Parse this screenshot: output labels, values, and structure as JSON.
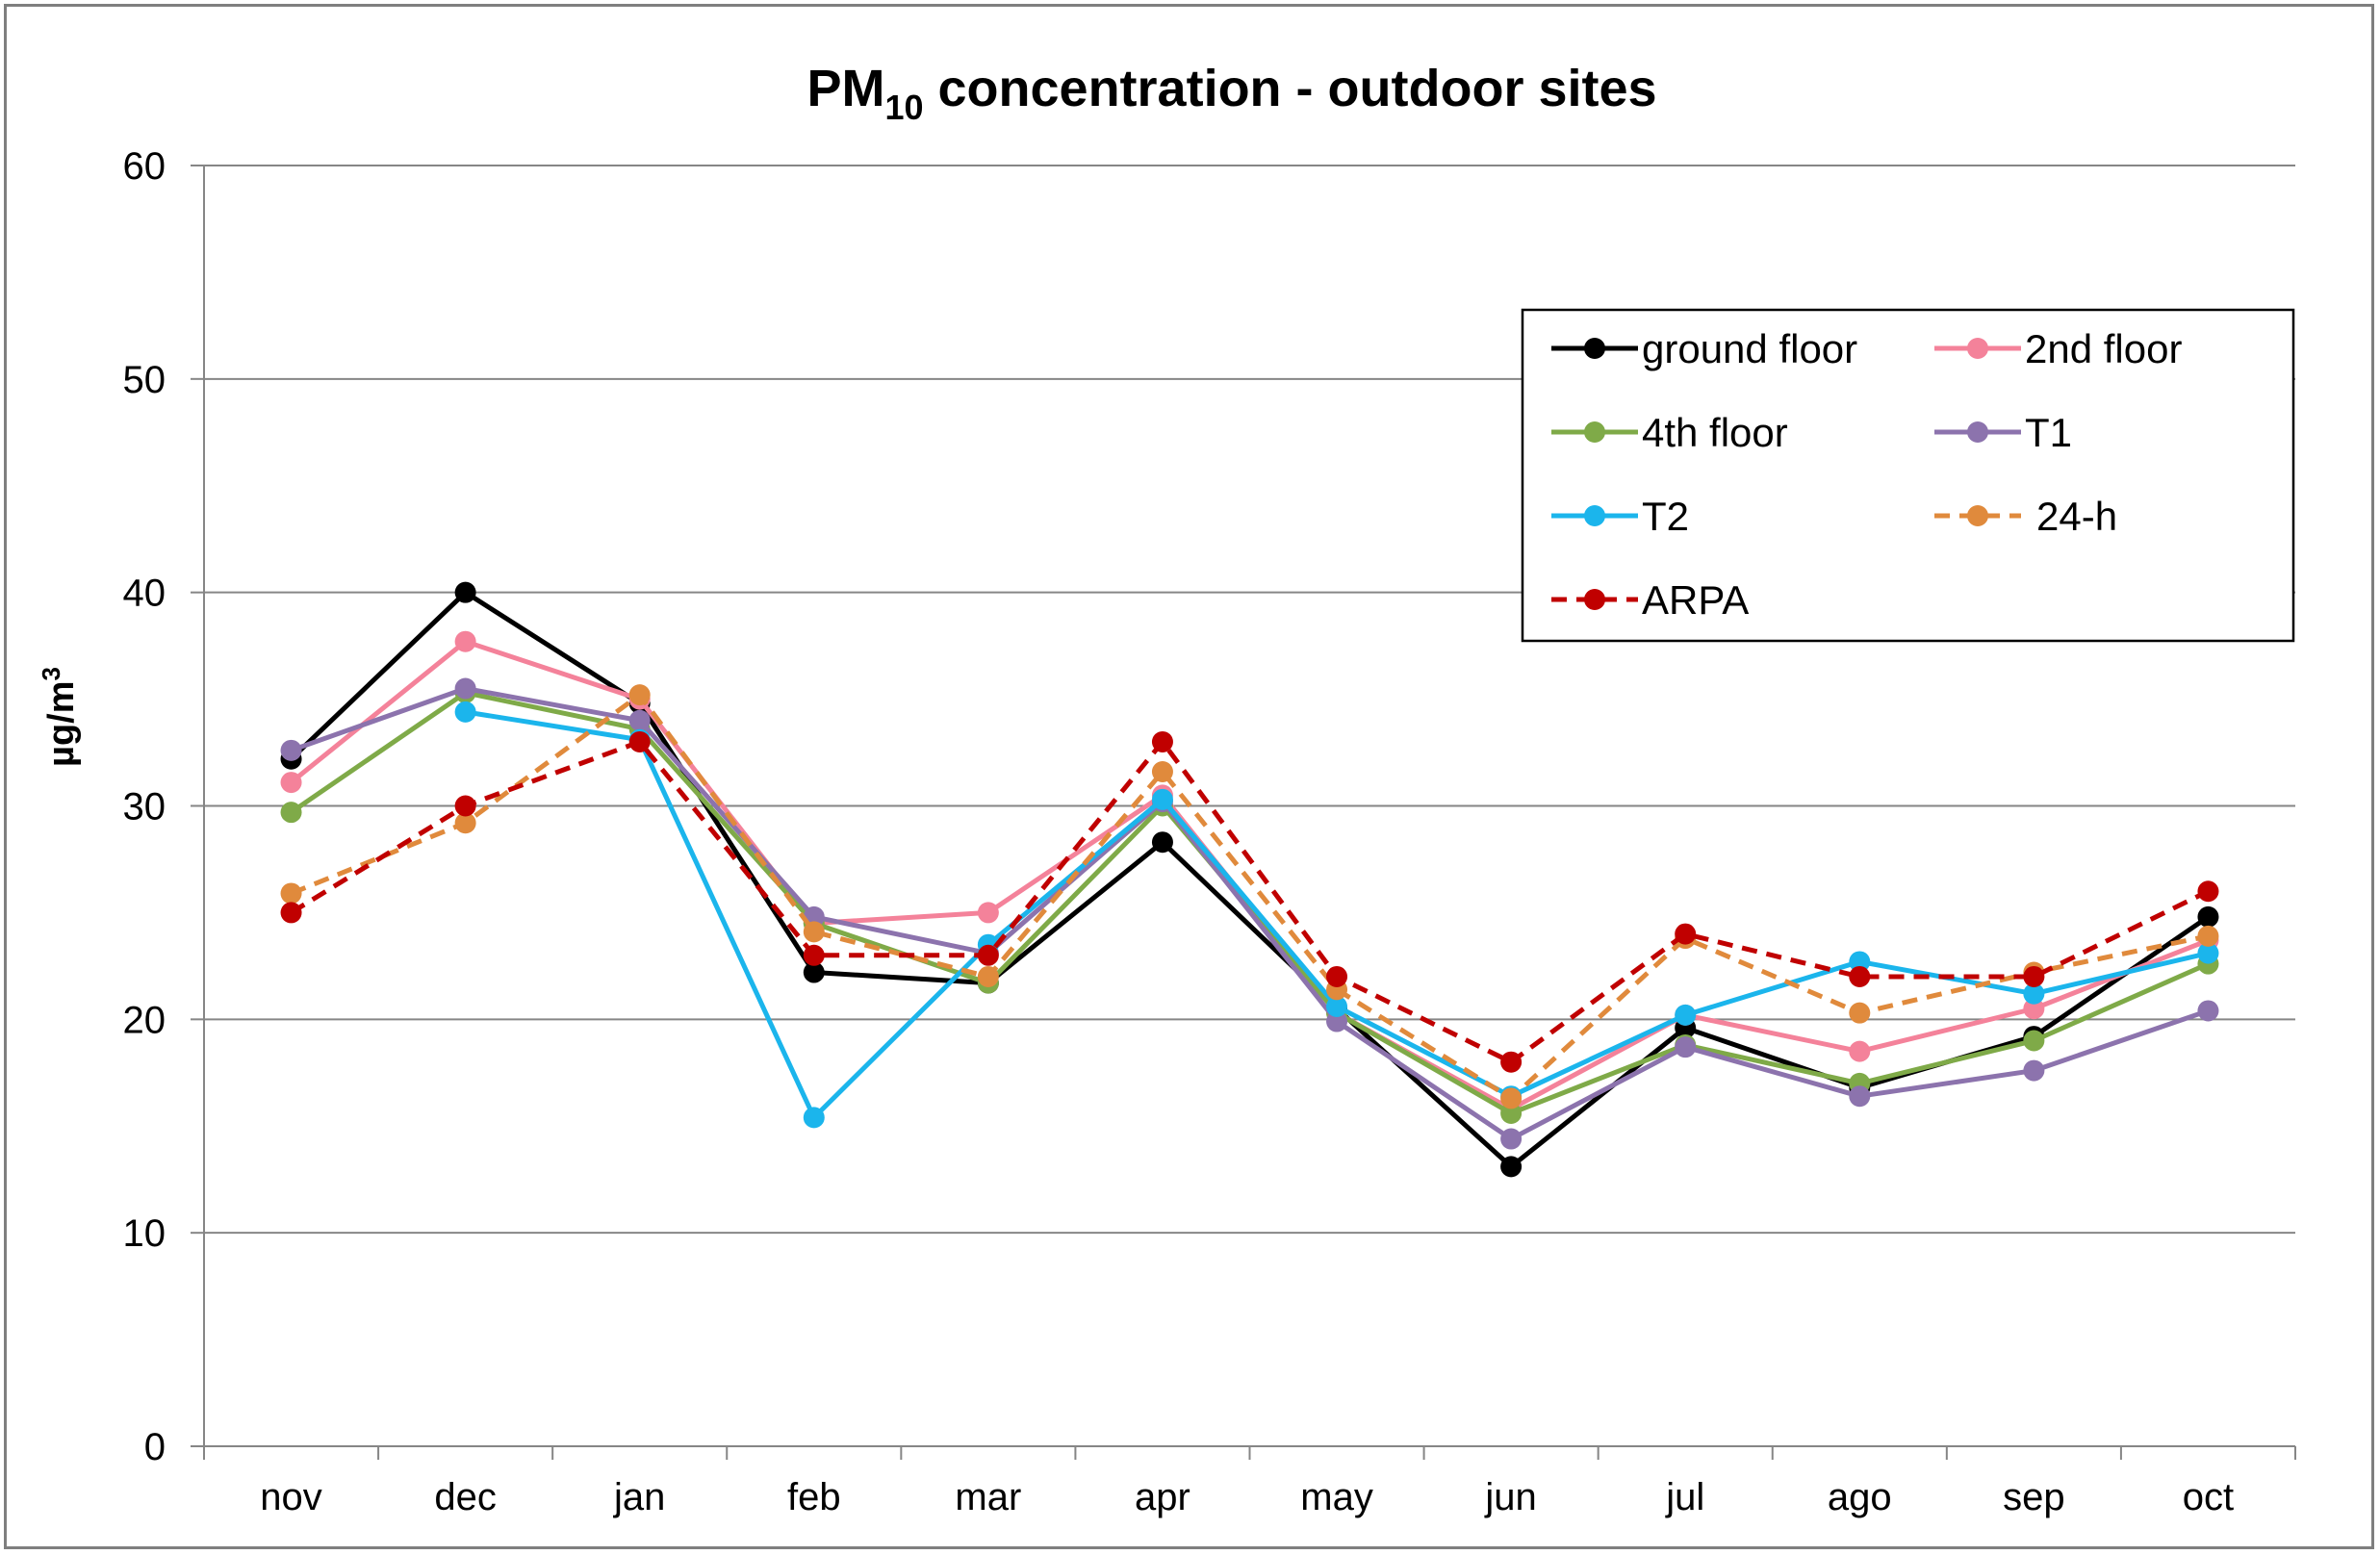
{
  "chart_data": {
    "type": "line",
    "title": {
      "prefix": "PM",
      "subscript": "10",
      "suffix": " concentration - outdoor sites"
    },
    "ylabel": {
      "prefix": "µg/m",
      "superscript": "3"
    },
    "xlabel": "",
    "ylim": [
      0,
      60
    ],
    "yticks": [
      "0",
      "10",
      "20",
      "30",
      "40",
      "50",
      "60"
    ],
    "ytick_values": [
      0,
      10,
      20,
      30,
      40,
      50,
      60
    ],
    "grid": true,
    "legend_position": "top-right",
    "categories": [
      "nov",
      "dec",
      "jan",
      "feb",
      "mar",
      "apr",
      "may",
      "jun",
      "jul",
      "ago",
      "sep",
      "oct"
    ],
    "series": [
      {
        "name": "ground floor",
        "color": "#000000",
        "dashed": false,
        "values": [
          32.2,
          40.0,
          34.8,
          22.2,
          21.7,
          28.3,
          20.5,
          13.1,
          19.6,
          16.8,
          19.2,
          24.8
        ]
      },
      {
        "name": "2nd floor",
        "color": "#f4829a",
        "dashed": false,
        "values": [
          31.1,
          37.7,
          35.0,
          24.5,
          25.0,
          30.5,
          20.3,
          15.8,
          20.2,
          18.5,
          20.5,
          23.7
        ]
      },
      {
        "name": "4th floor",
        "color": "#7faa48",
        "dashed": false,
        "values": [
          29.7,
          35.3,
          33.6,
          24.5,
          21.7,
          30.0,
          20.3,
          15.6,
          18.8,
          17.0,
          19.0,
          22.6
        ]
      },
      {
        "name": "T1",
        "color": "#8c73ad",
        "dashed": false,
        "values": [
          32.6,
          35.5,
          34.0,
          24.8,
          23.1,
          30.2,
          19.9,
          14.4,
          18.7,
          16.4,
          17.6,
          20.4
        ]
      },
      {
        "name": "T2",
        "color": "#1bb5ec",
        "dashed": false,
        "values": [
          null,
          34.4,
          33.1,
          15.4,
          23.5,
          30.3,
          20.6,
          16.4,
          20.2,
          22.7,
          21.2,
          23.1
        ]
      },
      {
        "name": "24-h",
        "color": "#e08a3c",
        "dashed": true,
        "values": [
          25.9,
          29.2,
          35.2,
          24.1,
          22.0,
          31.6,
          21.4,
          16.3,
          23.8,
          20.3,
          22.2,
          23.9
        ]
      },
      {
        "name": "ARPA",
        "color": "#c00000",
        "dashed": true,
        "values": [
          25.0,
          30.0,
          33.0,
          23.0,
          23.0,
          33.0,
          22.0,
          18.0,
          24.0,
          22.0,
          22.0,
          26.0
        ]
      }
    ]
  }
}
